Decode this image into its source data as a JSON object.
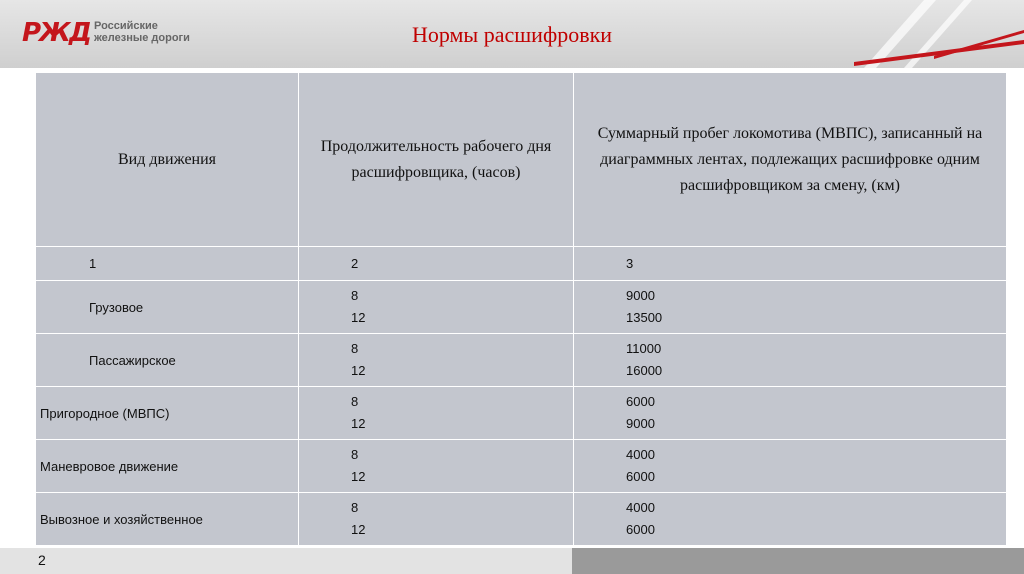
{
  "header": {
    "logo_lines": [
      "Российские",
      "железные дороги"
    ],
    "title": "Нормы расшифровки"
  },
  "table": {
    "columns": [
      "Вид движения",
      "Продолжительность рабочего дня расшифровщика, (часов)",
      "Суммарный пробег локомотива (МВПС), записанный на диаграммных лентах, подлежащих расшифровке одним расшифровщиком за смену, (км)"
    ],
    "numbering": [
      1,
      2,
      3
    ],
    "rows": [
      {
        "label": "Грузовое",
        "hours": [
          8,
          12
        ],
        "km": [
          9000,
          13500
        ]
      },
      {
        "label": "Пассажирское",
        "hours": [
          8,
          12
        ],
        "km": [
          11000,
          16000
        ]
      },
      {
        "label": "Пригородное (МВПС)",
        "hours": [
          8,
          12
        ],
        "km": [
          6000,
          9000
        ]
      },
      {
        "label": "Маневровое движение",
        "hours": [
          8,
          12
        ],
        "km": [
          4000,
          6000
        ]
      },
      {
        "label": "Вывозное и хозяйственное",
        "hours": [
          8,
          12
        ],
        "km": [
          4000,
          6000
        ]
      }
    ]
  },
  "footer": {
    "page": 2
  }
}
